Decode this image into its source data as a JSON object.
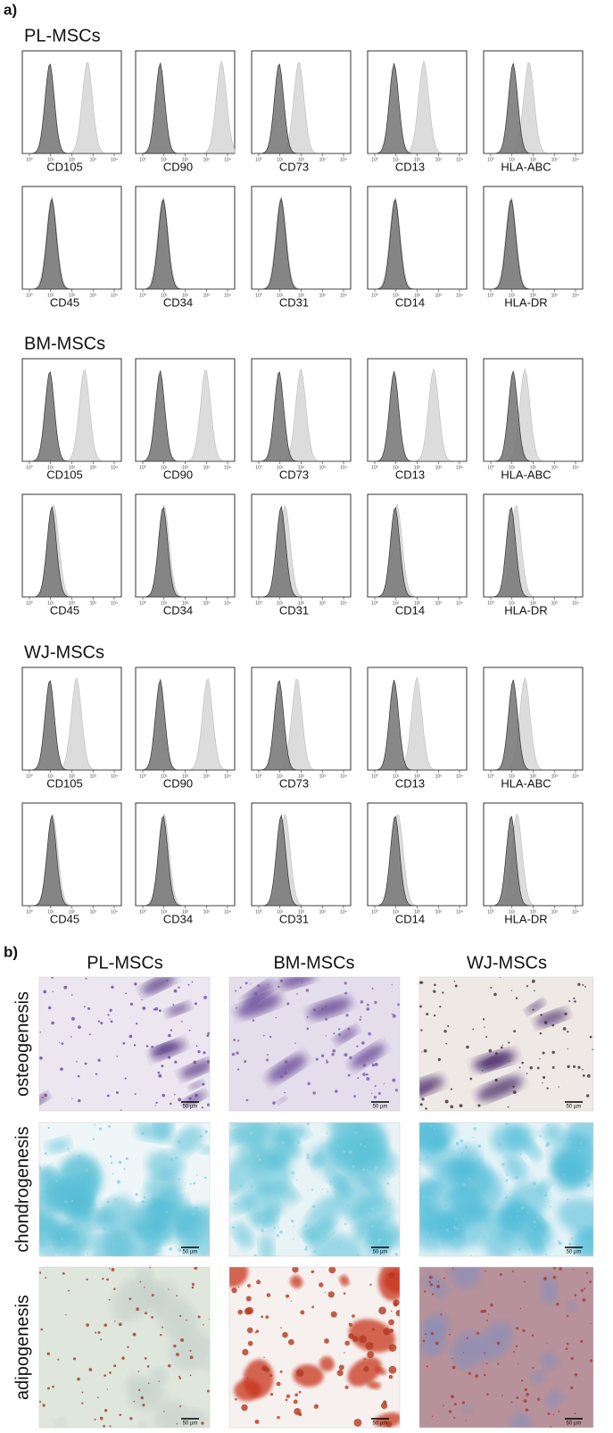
{
  "panel_a": {
    "label": "a)",
    "axis_ticks": [
      "10⁰",
      "10¹",
      "10²",
      "10³",
      "10⁴"
    ],
    "groups": [
      {
        "title": "PL-MSCs",
        "rows": [
          [
            "CD105",
            "CD90",
            "CD73",
            "CD13",
            "HLA-ABC"
          ],
          [
            "CD45",
            "CD34",
            "CD31",
            "CD14",
            "HLA-DR"
          ]
        ]
      },
      {
        "title": "BM-MSCs",
        "rows": [
          [
            "CD105",
            "CD90",
            "CD73",
            "CD13",
            "HLA-ABC"
          ],
          [
            "CD45",
            "CD34",
            "CD31",
            "CD14",
            "HLA-DR"
          ]
        ]
      },
      {
        "title": "WJ-MSCs",
        "rows": [
          [
            "CD105",
            "CD90",
            "CD73",
            "CD13",
            "HLA-ABC"
          ],
          [
            "CD45",
            "CD34",
            "CD31",
            "CD14",
            "HLA-DR"
          ]
        ]
      }
    ]
  },
  "panel_b": {
    "label": "b)",
    "columns": [
      "PL-MSCs",
      "BM-MSCs",
      "WJ-MSCs"
    ],
    "rows": [
      "osteogenesis",
      "chondrogenesis",
      "adipogenesis"
    ],
    "scale_bar": "50 µm"
  }
}
